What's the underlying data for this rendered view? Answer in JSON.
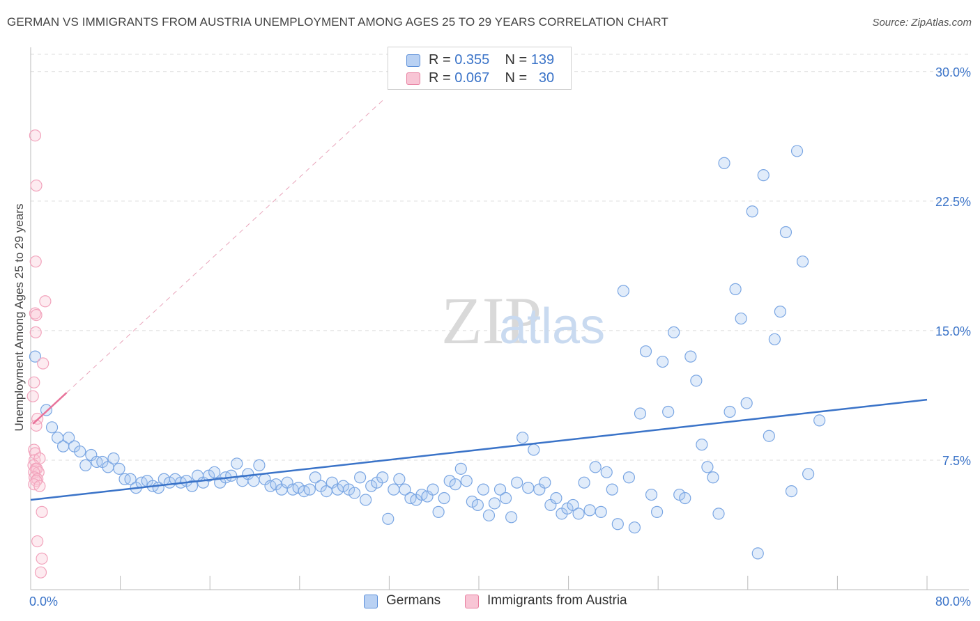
{
  "header": {
    "title": "GERMAN VS IMMIGRANTS FROM AUSTRIA UNEMPLOYMENT AMONG AGES 25 TO 29 YEARS CORRELATION CHART",
    "source": "Source: ZipAtlas.com"
  },
  "watermark": {
    "zip": "ZIP",
    "atlas": "atlas"
  },
  "legend_stats": [
    {
      "r_label": "R =",
      "r_value": "0.355",
      "n_label": "N =",
      "n_value": "139",
      "color": "#5b8fd9",
      "fill": "#b9d1f3"
    },
    {
      "r_label": "R =",
      "r_value": "0.067",
      "n_label": "N =",
      "n_value": "30",
      "color": "#e87fa0",
      "fill": "#f8c5d5"
    }
  ],
  "bottom_legend": {
    "germans": "Germans",
    "austria": "Immigrants from Austria"
  },
  "colors": {
    "blue": "#3a73c8",
    "blue_point": "#7aa6e3",
    "pink": "#e8729a",
    "pink_point": "#f2a3bc",
    "grid": "#dcdcdc"
  },
  "chart_data": {
    "type": "scatter",
    "title": "GERMAN VS IMMIGRANTS FROM AUSTRIA UNEMPLOYMENT AMONG AGES 25 TO 29 YEARS CORRELATION CHART",
    "xlabel": "",
    "ylabel": "Unemployment Among Ages 25 to 29 years",
    "xlim": [
      0,
      80
    ],
    "ylim": [
      0,
      30
    ],
    "x_tick_labels": [
      "0.0%",
      "80.0%"
    ],
    "y_ticks": [
      7.5,
      15.0,
      22.5,
      30.0
    ],
    "y_tick_labels": [
      "7.5%",
      "15.0%",
      "22.5%",
      "30.0%"
    ],
    "grid": "horizontal dashed",
    "legend_placement": "top-center",
    "series": [
      {
        "name": "Germans",
        "r": 0.355,
        "n": 139,
        "trend": {
          "x": [
            0,
            80
          ],
          "y": [
            5.2,
            11.0
          ]
        },
        "points": [
          [
            0.4,
            13.5
          ],
          [
            1.4,
            10.4
          ],
          [
            1.9,
            9.4
          ],
          [
            2.4,
            8.8
          ],
          [
            2.9,
            8.3
          ],
          [
            3.4,
            8.8
          ],
          [
            3.9,
            8.3
          ],
          [
            4.4,
            8.0
          ],
          [
            4.9,
            7.2
          ],
          [
            5.4,
            7.8
          ],
          [
            5.9,
            7.4
          ],
          [
            6.4,
            7.4
          ],
          [
            6.9,
            7.1
          ],
          [
            7.4,
            7.6
          ],
          [
            7.9,
            7.0
          ],
          [
            8.4,
            6.4
          ],
          [
            8.9,
            6.4
          ],
          [
            9.4,
            5.9
          ],
          [
            9.9,
            6.2
          ],
          [
            10.4,
            6.3
          ],
          [
            10.9,
            6.0
          ],
          [
            11.4,
            5.9
          ],
          [
            11.9,
            6.4
          ],
          [
            12.4,
            6.2
          ],
          [
            12.9,
            6.4
          ],
          [
            13.4,
            6.2
          ],
          [
            13.9,
            6.3
          ],
          [
            14.4,
            6.0
          ],
          [
            14.9,
            6.6
          ],
          [
            15.4,
            6.2
          ],
          [
            15.9,
            6.6
          ],
          [
            16.4,
            6.8
          ],
          [
            16.9,
            6.2
          ],
          [
            17.4,
            6.5
          ],
          [
            17.9,
            6.6
          ],
          [
            18.4,
            7.3
          ],
          [
            18.9,
            6.3
          ],
          [
            19.4,
            6.7
          ],
          [
            19.9,
            6.3
          ],
          [
            20.4,
            7.2
          ],
          [
            20.9,
            6.4
          ],
          [
            21.4,
            6.0
          ],
          [
            21.9,
            6.1
          ],
          [
            22.4,
            5.8
          ],
          [
            22.9,
            6.2
          ],
          [
            23.4,
            5.8
          ],
          [
            23.9,
            5.9
          ],
          [
            24.4,
            5.7
          ],
          [
            24.9,
            5.8
          ],
          [
            25.4,
            6.5
          ],
          [
            25.9,
            6.0
          ],
          [
            26.4,
            5.7
          ],
          [
            26.9,
            6.2
          ],
          [
            27.4,
            5.8
          ],
          [
            27.9,
            6.0
          ],
          [
            28.4,
            5.8
          ],
          [
            28.9,
            5.6
          ],
          [
            29.4,
            6.5
          ],
          [
            29.9,
            5.2
          ],
          [
            30.4,
            6.0
          ],
          [
            30.9,
            6.2
          ],
          [
            31.4,
            6.5
          ],
          [
            31.9,
            4.1
          ],
          [
            32.4,
            5.8
          ],
          [
            32.9,
            6.4
          ],
          [
            33.4,
            5.8
          ],
          [
            33.9,
            5.3
          ],
          [
            34.4,
            5.2
          ],
          [
            34.9,
            5.5
          ],
          [
            35.4,
            5.4
          ],
          [
            35.9,
            5.8
          ],
          [
            36.4,
            4.5
          ],
          [
            36.9,
            5.3
          ],
          [
            37.4,
            6.3
          ],
          [
            37.9,
            6.1
          ],
          [
            38.4,
            7.0
          ],
          [
            38.9,
            6.3
          ],
          [
            39.4,
            5.1
          ],
          [
            39.9,
            4.9
          ],
          [
            40.4,
            5.8
          ],
          [
            40.9,
            4.3
          ],
          [
            41.4,
            5.0
          ],
          [
            41.9,
            5.8
          ],
          [
            42.4,
            5.3
          ],
          [
            42.9,
            4.2
          ],
          [
            43.4,
            6.2
          ],
          [
            43.9,
            8.8
          ],
          [
            44.4,
            5.9
          ],
          [
            44.9,
            8.1
          ],
          [
            45.4,
            5.8
          ],
          [
            45.9,
            6.2
          ],
          [
            46.4,
            4.9
          ],
          [
            46.9,
            5.3
          ],
          [
            47.4,
            4.4
          ],
          [
            47.9,
            4.7
          ],
          [
            48.4,
            4.9
          ],
          [
            48.9,
            4.4
          ],
          [
            49.4,
            6.2
          ],
          [
            49.9,
            4.6
          ],
          [
            50.4,
            7.1
          ],
          [
            50.9,
            4.5
          ],
          [
            51.4,
            6.8
          ],
          [
            51.9,
            5.8
          ],
          [
            52.4,
            3.8
          ],
          [
            52.9,
            17.3
          ],
          [
            53.4,
            6.5
          ],
          [
            53.9,
            3.6
          ],
          [
            54.4,
            10.2
          ],
          [
            54.9,
            13.8
          ],
          [
            55.4,
            5.5
          ],
          [
            55.9,
            4.5
          ],
          [
            56.4,
            13.2
          ],
          [
            56.9,
            10.3
          ],
          [
            57.4,
            14.9
          ],
          [
            57.9,
            5.5
          ],
          [
            58.4,
            5.3
          ],
          [
            58.9,
            13.5
          ],
          [
            59.4,
            12.1
          ],
          [
            59.9,
            8.4
          ],
          [
            60.4,
            7.1
          ],
          [
            60.9,
            6.5
          ],
          [
            61.4,
            4.4
          ],
          [
            61.9,
            24.7
          ],
          [
            62.4,
            10.3
          ],
          [
            62.9,
            17.4
          ],
          [
            63.4,
            15.7
          ],
          [
            63.9,
            10.8
          ],
          [
            64.4,
            21.9
          ],
          [
            64.9,
            2.1
          ],
          [
            65.4,
            24.0
          ],
          [
            65.9,
            8.9
          ],
          [
            66.4,
            14.5
          ],
          [
            66.9,
            16.1
          ],
          [
            67.4,
            20.7
          ],
          [
            67.9,
            5.7
          ],
          [
            68.4,
            25.4
          ],
          [
            68.9,
            19.0
          ],
          [
            69.4,
            6.7
          ],
          [
            70.4,
            9.8
          ]
        ]
      },
      {
        "name": "Immigrants from Austria",
        "r": 0.067,
        "n": 30,
        "trend": {
          "x": [
            0.2,
            3.2
          ],
          "y": [
            9.6,
            11.4
          ]
        },
        "points": [
          [
            0.4,
            26.3
          ],
          [
            0.5,
            23.4
          ],
          [
            0.45,
            19.0
          ],
          [
            0.4,
            16.0
          ],
          [
            0.5,
            15.9
          ],
          [
            0.45,
            14.9
          ],
          [
            1.3,
            16.7
          ],
          [
            1.1,
            13.1
          ],
          [
            0.3,
            12.0
          ],
          [
            0.2,
            11.2
          ],
          [
            0.6,
            9.9
          ],
          [
            0.5,
            9.5
          ],
          [
            0.3,
            8.1
          ],
          [
            0.4,
            7.9
          ],
          [
            0.35,
            7.5
          ],
          [
            0.8,
            7.6
          ],
          [
            0.25,
            7.2
          ],
          [
            0.45,
            7.0
          ],
          [
            0.55,
            7.0
          ],
          [
            0.7,
            6.8
          ],
          [
            0.3,
            6.8
          ],
          [
            0.35,
            6.5
          ],
          [
            0.6,
            6.4
          ],
          [
            0.5,
            6.3
          ],
          [
            0.3,
            6.1
          ],
          [
            0.8,
            6.0
          ],
          [
            1.0,
            4.5
          ],
          [
            0.6,
            2.8
          ],
          [
            1.0,
            1.8
          ],
          [
            0.9,
            1.0
          ]
        ]
      }
    ]
  }
}
